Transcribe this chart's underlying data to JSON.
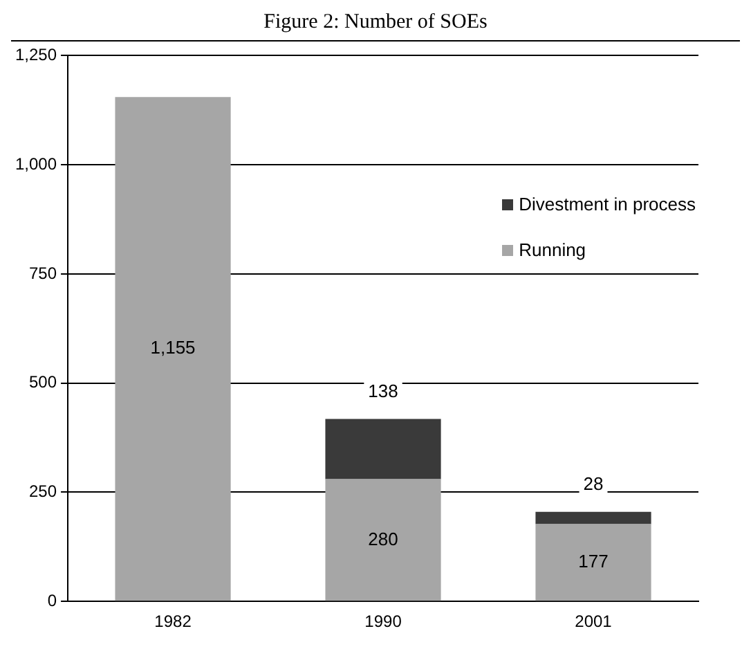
{
  "chart_data": {
    "type": "bar",
    "title": "Figure 2: Number of SOEs",
    "categories": [
      "1982",
      "1990",
      "2001"
    ],
    "stacked": true,
    "series": [
      {
        "name": "Running",
        "color": "#a6a6a6",
        "values": [
          1155,
          280,
          177
        ],
        "value_labels": [
          "1,155",
          "280",
          "177"
        ]
      },
      {
        "name": "Divestment in process",
        "color": "#3a3a3a",
        "values": [
          null,
          138,
          28
        ],
        "value_labels": [
          null,
          "138",
          "28"
        ]
      }
    ],
    "ylim": [
      0,
      1250
    ],
    "yticks": [
      0,
      250,
      500,
      750,
      {
        "value": 1000,
        "label": "1,000"
      },
      {
        "value": 1250,
        "label": "1,250"
      }
    ],
    "grid": "y",
    "legend": "top right"
  }
}
